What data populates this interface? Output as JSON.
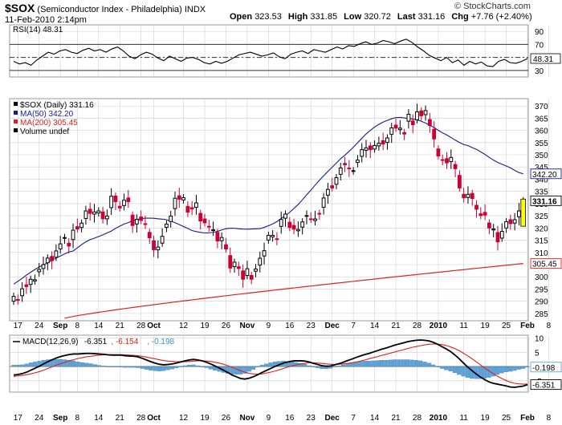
{
  "header": {
    "symbol": "$SOX",
    "name": "(Semiconductor Index - Philadelphia)",
    "exchange": "INDX",
    "datetime": "11-Feb-2010 2:14pm",
    "open_label": "Open",
    "open": "323.53",
    "high_label": "High",
    "high": "331.85",
    "low_label": "Low",
    "low": "320.72",
    "last_label": "Last",
    "last": "331.16",
    "chg_label": "Chg",
    "chg": "+7.76 (+2.40%)",
    "copyright": "© StockCharts.com"
  },
  "colors": {
    "up": "#000000",
    "down": "#cc0033",
    "ma50": "#1a1a8c",
    "ma200": "#e0201b",
    "macd": "#000000",
    "signal": "#e0201b",
    "hist": "#5ba3d9",
    "highlight": "#ffff00",
    "grid": "#cfcfcf"
  },
  "chart_data": [
    {
      "type": "line",
      "panel": "RSI",
      "legend": "RSI(14) 48.31",
      "ylim": [
        20,
        100
      ],
      "ticks": [
        30,
        50,
        70,
        90
      ],
      "reference_lines": [
        30,
        50,
        70
      ],
      "last_label": "48.31",
      "values": [
        44,
        40,
        42,
        38,
        46,
        52,
        58,
        55,
        60,
        62,
        58,
        56,
        61,
        64,
        60,
        62,
        58,
        63,
        66,
        60,
        52,
        48,
        54,
        58,
        55,
        49,
        45,
        52,
        48,
        44,
        49,
        50,
        47,
        42,
        40,
        44,
        41,
        44,
        49,
        54,
        56,
        58,
        55,
        52,
        54,
        57,
        51,
        48,
        55,
        58,
        60,
        56,
        62,
        60,
        58,
        62,
        66,
        63,
        68,
        67,
        71,
        74,
        70,
        72,
        76,
        74,
        71,
        75,
        78,
        73,
        66,
        60,
        53,
        49,
        45,
        50,
        42,
        46,
        38,
        44,
        40,
        43,
        37,
        36,
        44,
        47,
        42,
        41,
        44,
        48.31
      ]
    },
    {
      "type": "candlestick",
      "panel": "price",
      "legend": [
        {
          "text": "$SOX (Daily) 331.16",
          "color": "#000000"
        },
        {
          "text": "MA(50) 342.20",
          "color": "#1a1a8c"
        },
        {
          "text": "MA(200) 305.45",
          "color": "#e0201b"
        },
        {
          "text": "Volume undef",
          "color": "#000000"
        }
      ],
      "ylim": [
        282,
        373
      ],
      "yticks": [
        285,
        290,
        295,
        300,
        305,
        310,
        315,
        320,
        325,
        330,
        335,
        340,
        345,
        350,
        355,
        360,
        365,
        370
      ],
      "xlabels": [
        "17",
        "24",
        "Sep",
        "8",
        "14",
        "21",
        "28",
        "Oct",
        "12",
        "19",
        "26",
        "Nov",
        "9",
        "16",
        "23",
        "Dec",
        "7",
        "14",
        "21",
        "28",
        "2010",
        "11",
        "19",
        "25",
        "Feb",
        "8"
      ],
      "xlabel_bar_index": [
        1,
        6,
        11,
        15,
        20,
        25,
        30,
        33,
        40,
        45,
        50,
        55,
        60,
        65,
        70,
        75,
        80,
        85,
        90,
        95,
        100,
        106,
        111,
        116,
        121,
        126
      ],
      "xlabel_bold": [
        "Sep",
        "Oct",
        "Nov",
        "Dec",
        "2010",
        "Feb"
      ],
      "close": [
        292.0,
        290.6,
        295.1,
        296.0,
        299.0,
        298.8,
        303.0,
        305.0,
        307.7,
        306.6,
        310.6,
        313.5,
        316.1,
        312.6,
        319.1,
        319.6,
        322.0,
        327.0,
        326.0,
        326.6,
        327.0,
        323.8,
        324.9,
        333.0,
        330.8,
        328.2,
        331.4,
        330.8,
        321.0,
        323.5,
        323.1,
        321.6,
        316.0,
        311.1,
        312.2,
        316.6,
        321.6,
        324.9,
        332.2,
        331.8,
        332.4,
        326.5,
        327.8,
        330.3,
        322.9,
        322.1,
        320.5,
        319.3,
        314.7,
        316.1,
        311.4,
        303.6,
        306.0,
        303.4,
        299.0,
        303.3,
        299.0,
        303.2,
        307.6,
        310.7,
        317.0,
        317.0,
        315.4,
        323.5,
        325.7,
        320.2,
        319.5,
        319.4,
        322.5,
        325.1,
        323.6,
        323.7,
        325.9,
        332.3,
        335.8,
        336.4,
        340.6,
        344.6,
        345.9,
        344.4,
        343.5,
        347.8,
        352.1,
        352.8,
        352.1,
        353.8,
        354.7,
        354.4,
        356.9,
        361.0,
        360.9,
        360.9,
        358.5,
        366.6,
        362.3,
        367.6,
        366.0,
        368.1,
        362.0,
        356.5,
        349.5,
        347.7,
        346.7,
        348.9,
        344.3,
        336.4,
        332.4,
        333.8,
        332.1,
        327.7,
        325.1,
        325.3,
        320.0,
        319.6,
        314.3,
        318.6,
        322.6,
        321.8,
        323.4,
        327.0,
        331.16
      ],
      "ma50": {
        "start": 297.0,
        "end": 342.2
      },
      "ma200": {
        "start": 283.0,
        "end": 305.45
      },
      "last_label": "331.16",
      "ma50_label": "342.20",
      "ma200_label": "305.45"
    },
    {
      "type": "line",
      "panel": "MACD",
      "legend": [
        {
          "text": "MACD(12,26,9)",
          "color": "#000000"
        },
        {
          "text": "-6.351",
          "color": "#000000"
        },
        {
          "text": ", -6.154",
          "color": "#e0201b"
        },
        {
          "text": ", -0.198",
          "color": "#3d8fc9"
        }
      ],
      "ylim": [
        -9,
        11
      ],
      "ticks": [
        -5,
        0,
        5,
        10
      ],
      "macd_label": "-6.351",
      "hist_label": "-0.198",
      "macd": [
        -3.0,
        -2.8,
        -2.5,
        -2.0,
        -1.3,
        -0.6,
        0.1,
        0.9,
        1.7,
        2.4,
        3.0,
        3.5,
        3.9,
        4.2,
        4.4,
        4.4,
        4.5,
        4.6,
        4.6,
        4.5,
        4.4,
        4.3,
        4.1,
        4.0,
        4.0,
        4.0,
        3.8,
        3.7,
        3.6,
        3.4,
        2.9,
        2.3,
        1.7,
        1.2,
        0.8,
        0.6,
        0.7,
        0.9,
        1.2,
        1.6,
        2.0,
        2.3,
        2.5,
        2.3,
        2.0,
        1.5,
        0.9,
        0.2,
        -0.5,
        -1.3,
        -2.1,
        -3.0,
        -3.6,
        -4.2,
        -4.4,
        -4.1,
        -3.6,
        -2.9,
        -2.1,
        -1.4,
        -0.7,
        0.0,
        0.6,
        1.2,
        1.6,
        1.9,
        2.0,
        2.0,
        1.9,
        1.6,
        1.1,
        0.7,
        0.3,
        0.1,
        0.2,
        0.6,
        1.0,
        1.5,
        2.1,
        2.6,
        3.2,
        3.7,
        4.2,
        4.6,
        5.1,
        5.6,
        6.1,
        6.5,
        7.0,
        7.5,
        7.9,
        8.3,
        8.7,
        9.0,
        9.2,
        9.3,
        9.2,
        9.0,
        8.5,
        7.8,
        7.0,
        6.2,
        5.3,
        4.1,
        2.8,
        1.3,
        -0.1,
        -1.4,
        -2.6,
        -3.7,
        -4.6,
        -5.4,
        -5.9,
        -6.2,
        -6.5,
        -6.8,
        -7.2,
        -7.3,
        -7.1,
        -6.9,
        -6.351
      ],
      "signal": [
        -3.5,
        -3.3,
        -3.1,
        -2.9,
        -2.6,
        -2.2,
        -1.8,
        -1.3,
        -0.7,
        -0.1,
        0.5,
        1.0,
        1.5,
        2.0,
        2.4,
        2.8,
        3.1,
        3.4,
        3.6,
        3.8,
        4.0,
        4.1,
        4.2,
        4.2,
        4.2,
        4.2,
        4.1,
        4.0,
        3.9,
        3.8,
        3.6,
        3.3,
        3.0,
        2.7,
        2.4,
        2.1,
        1.9,
        1.8,
        1.7,
        1.7,
        1.7,
        1.8,
        1.9,
        2.0,
        2.0,
        1.9,
        1.8,
        1.5,
        1.2,
        0.8,
        0.3,
        -0.3,
        -0.9,
        -1.5,
        -2.0,
        -2.4,
        -2.6,
        -2.7,
        -2.6,
        -2.3,
        -2.0,
        -1.6,
        -1.2,
        -0.7,
        -0.2,
        0.2,
        0.6,
        0.9,
        1.1,
        1.3,
        1.3,
        1.2,
        1.1,
        0.9,
        0.8,
        0.7,
        0.8,
        0.9,
        1.1,
        1.3,
        1.6,
        1.9,
        2.3,
        2.7,
        3.1,
        3.5,
        3.9,
        4.3,
        4.7,
        5.1,
        5.5,
        5.9,
        6.3,
        6.7,
        7.0,
        7.3,
        7.6,
        7.8,
        7.9,
        7.9,
        7.7,
        7.4,
        6.9,
        6.3,
        5.6,
        4.7,
        3.8,
        2.8,
        1.7,
        0.6,
        -0.5,
        -1.5,
        -2.5,
        -3.4,
        -4.2,
        -4.9,
        -5.5,
        -5.9,
        -6.1,
        -6.2,
        -6.154
      ]
    }
  ]
}
